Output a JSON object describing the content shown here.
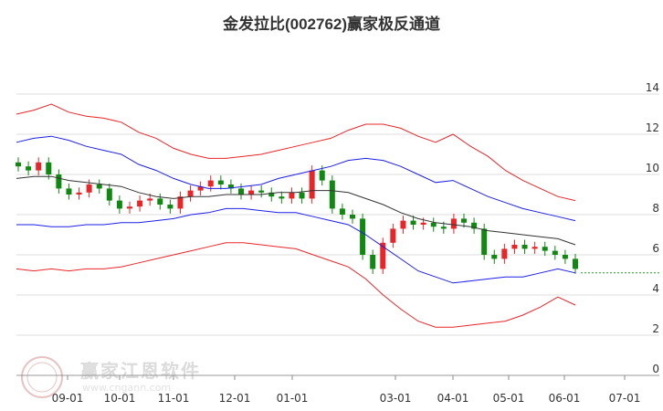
{
  "chart_data": {
    "type": "line",
    "title": "金发拉比(002762)赢家极反通道",
    "x_ticks": [
      "09-01",
      "10-01",
      "11-01",
      "12-01",
      "01-01",
      "03-01",
      "04-01",
      "05-01",
      "06-01",
      "07-01"
    ],
    "y_ticks": [
      "14",
      "12",
      "10",
      "8",
      "6",
      "4",
      "2",
      "0"
    ],
    "ylim": [
      0,
      14
    ],
    "grid": true,
    "series": [
      {
        "color": "#e8262a",
        "values": [
          13.0,
          13.2,
          13.5,
          13.1,
          12.9,
          12.8,
          12.6,
          12.1,
          11.8,
          11.3,
          11.0,
          10.8,
          10.8,
          10.9,
          11.0,
          11.2,
          11.4,
          11.6,
          11.8,
          12.2,
          12.5,
          12.5,
          12.3,
          11.9,
          11.6,
          12.0,
          11.4,
          10.9,
          10.2,
          9.7,
          9.3,
          8.9,
          8.7
        ]
      },
      {
        "color": "#1e1ee6",
        "values": [
          11.6,
          11.8,
          11.9,
          11.7,
          11.4,
          11.2,
          11.0,
          10.5,
          10.2,
          9.8,
          9.5,
          9.3,
          9.3,
          9.4,
          9.5,
          9.8,
          10.0,
          10.2,
          10.4,
          10.7,
          10.8,
          10.7,
          10.4,
          10.0,
          9.6,
          9.7,
          9.3,
          8.9,
          8.6,
          8.3,
          8.1,
          7.9,
          7.7
        ]
      },
      {
        "color": "#333333",
        "values": [
          9.8,
          9.9,
          9.9,
          9.7,
          9.6,
          9.5,
          9.4,
          9.1,
          8.9,
          8.8,
          8.9,
          8.9,
          9.0,
          9.0,
          9.0,
          9.1,
          9.1,
          9.2,
          9.2,
          9.1,
          8.8,
          8.5,
          8.1,
          7.8,
          7.6,
          7.5,
          7.4,
          7.2,
          7.1,
          7.0,
          6.9,
          6.8,
          6.5
        ]
      },
      {
        "color": "#1e1ee6",
        "values": [
          7.5,
          7.5,
          7.4,
          7.4,
          7.5,
          7.5,
          7.6,
          7.6,
          7.7,
          7.8,
          8.0,
          8.1,
          8.3,
          8.3,
          8.2,
          8.1,
          8.1,
          7.9,
          7.7,
          7.5,
          7.0,
          6.4,
          5.8,
          5.2,
          4.9,
          4.6,
          4.7,
          4.8,
          4.9,
          4.9,
          5.1,
          5.3,
          5.1
        ]
      },
      {
        "color": "#e8262a",
        "values": [
          5.3,
          5.2,
          5.3,
          5.2,
          5.3,
          5.3,
          5.4,
          5.6,
          5.8,
          6.0,
          6.2,
          6.4,
          6.6,
          6.6,
          6.5,
          6.4,
          6.3,
          6.0,
          5.7,
          5.4,
          4.8,
          4.0,
          3.3,
          2.7,
          2.4,
          2.4,
          2.5,
          2.6,
          2.7,
          3.0,
          3.4,
          3.9,
          3.5
        ]
      },
      {
        "color": "#22a022",
        "style": "dashed",
        "values": [
          5.1,
          5.1
        ]
      }
    ],
    "candles_close": [
      10.4,
      10.2,
      10.6,
      10.0,
      9.3,
      9.0,
      9.1,
      9.5,
      9.3,
      8.7,
      8.3,
      8.4,
      8.7,
      8.8,
      8.5,
      8.3,
      8.9,
      9.2,
      9.4,
      9.7,
      9.5,
      9.3,
      9.0,
      9.2,
      9.1,
      8.9,
      8.8,
      9.1,
      8.8,
      10.2,
      9.7,
      8.3,
      8.0,
      7.8,
      6.0,
      5.3,
      6.6,
      7.3,
      7.7,
      7.5,
      7.6,
      7.4,
      7.3,
      7.8,
      7.6,
      7.3,
      6.0,
      5.8,
      6.3,
      6.5,
      6.3,
      6.4,
      6.2,
      6.0,
      5.8,
      5.3
    ]
  }
}
